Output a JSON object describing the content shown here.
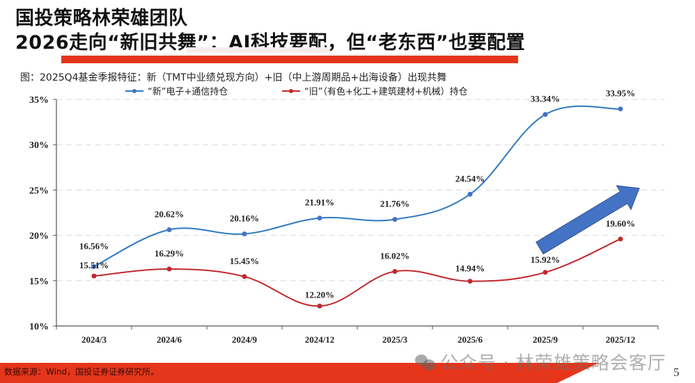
{
  "header": {
    "title_line1": "国投策略林荣雄团队",
    "title_line2": "2026走向“新旧共舞”：AI科技要配，但“老东西”也要配置",
    "accent_color": "#e5361b"
  },
  "figure_caption": "图：2025Q4基金季报特征：新（TMT中业绩兑现方向）+旧（中上游周期品+出海设备）出现共舞",
  "chart_data": {
    "type": "line",
    "title": "图：2025Q4基金季报特征：新（TMT中业绩兑现方向）+旧（中上游周期品+出海设备）出现共舞",
    "xlabel": "",
    "ylabel": "",
    "categories": [
      "2024/3",
      "2024/6",
      "2024/9",
      "2024/12",
      "2025/3",
      "2025/6",
      "2025/9",
      "2025/12"
    ],
    "ylim": [
      10,
      35
    ],
    "yticks": [
      10,
      15,
      20,
      25,
      30,
      35
    ],
    "ytick_labels": [
      "10%",
      "15%",
      "20%",
      "25%",
      "30%",
      "35%"
    ],
    "grid": "horizontal-dashed",
    "legend_position": "top",
    "series": [
      {
        "name": "“新”电子+通信持仓",
        "color": "#2e78c0",
        "marker_color": "#4472c4",
        "values": [
          16.56,
          20.62,
          20.16,
          21.91,
          21.76,
          24.54,
          33.34,
          33.95
        ],
        "labels": [
          "16.56%",
          "20.62%",
          "20.16%",
          "21.91%",
          "21.76%",
          "24.54%",
          "33.34%",
          "33.95%"
        ]
      },
      {
        "name": "“旧”（有色+化工+建筑建材+机械）持仓",
        "color": "#c0282d",
        "marker_color": "#c0282d",
        "values": [
          15.51,
          16.29,
          15.45,
          12.2,
          16.02,
          14.94,
          15.92,
          19.6
        ],
        "labels": [
          "15.51%",
          "16.29%",
          "15.45%",
          "12.20%",
          "16.02%",
          "14.94%",
          "15.92%",
          "19.60%"
        ]
      }
    ],
    "annotations": [
      {
        "type": "arrow",
        "direction": "up-right",
        "color": "#4472c4",
        "from_category": "2025/9",
        "to_category": "2025/12"
      }
    ]
  },
  "footer": {
    "source": "数据来源：Wind，国投证券证券研究所。",
    "watermark": "公众号 · 林荣雄策略会客厅",
    "page_number": "5"
  }
}
